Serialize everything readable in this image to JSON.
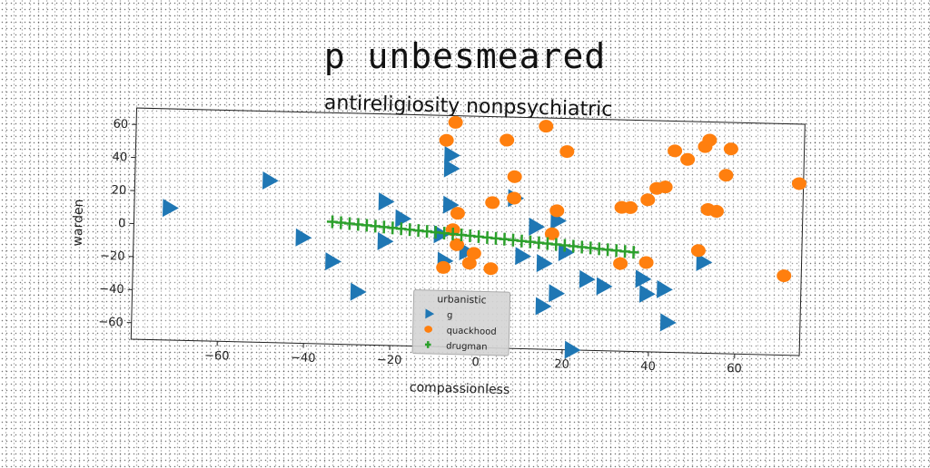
{
  "page_title": "p unbesmeared",
  "chart_data": {
    "type": "scatter",
    "title": "antireligiosity nonpsychiatric",
    "xlabel": "compassionless",
    "ylabel": "warden",
    "xlim": [
      -80,
      75
    ],
    "ylim": [
      -70,
      70
    ],
    "xticks": [
      -60,
      -40,
      -20,
      0,
      20,
      40,
      60
    ],
    "yticks": [
      -60,
      -40,
      -20,
      0,
      20,
      40,
      60
    ],
    "grid": false,
    "legend": {
      "title": "urbanistic",
      "placement": "lower-center"
    },
    "series": [
      {
        "name": "g",
        "marker": "triangle-right",
        "color": "#1f77b4",
        "points": [
          [
            -72,
            10
          ],
          [
            -49,
            28
          ],
          [
            -41,
            -6
          ],
          [
            -34,
            -20
          ],
          [
            -28,
            -38
          ],
          [
            -22,
            17
          ],
          [
            -22,
            -7
          ],
          [
            -18,
            7
          ],
          [
            -7,
            46
          ],
          [
            -7,
            38
          ],
          [
            -7,
            16
          ],
          [
            -8,
            -18
          ],
          [
            -3,
            -12
          ],
          [
            -9,
            -2
          ],
          [
            8,
            21
          ],
          [
            13,
            4
          ],
          [
            15,
            -18
          ],
          [
            18,
            8
          ],
          [
            10,
            -14
          ],
          [
            20,
            -11
          ],
          [
            18,
            -36
          ],
          [
            15,
            -44
          ],
          [
            25,
            -27
          ],
          [
            29,
            -31
          ],
          [
            38,
            -26
          ],
          [
            39,
            -35
          ],
          [
            43,
            -32
          ],
          [
            44,
            -52
          ],
          [
            52,
            -15
          ],
          [
            22,
            -70
          ]
        ]
      },
      {
        "name": "quackhood",
        "marker": "circle",
        "color": "#ff7f0e",
        "points": [
          [
            -8,
            55
          ],
          [
            -6,
            66
          ],
          [
            6,
            56
          ],
          [
            15,
            65
          ],
          [
            20,
            50
          ],
          [
            8,
            34
          ],
          [
            -5,
            11
          ],
          [
            3,
            18
          ],
          [
            8,
            21
          ],
          [
            18,
            14
          ],
          [
            17,
            0
          ],
          [
            -6,
            1
          ],
          [
            -5,
            -8
          ],
          [
            -1,
            -13
          ],
          [
            -8,
            -22
          ],
          [
            -2,
            -19
          ],
          [
            3,
            -22
          ],
          [
            33,
            -17
          ],
          [
            39,
            -16
          ],
          [
            33,
            17
          ],
          [
            35,
            17
          ],
          [
            39,
            22
          ],
          [
            43,
            30
          ],
          [
            41,
            29
          ],
          [
            45,
            52
          ],
          [
            48,
            47
          ],
          [
            52,
            55
          ],
          [
            53,
            59
          ],
          [
            58,
            54
          ],
          [
            57,
            38
          ],
          [
            53,
            17
          ],
          [
            55,
            16
          ],
          [
            51,
            -8
          ],
          [
            71,
            -22
          ],
          [
            74,
            34
          ]
        ]
      },
      {
        "name": "drugman",
        "marker": "plus",
        "color": "#2ca02c",
        "points": [
          [
            -34,
            4
          ],
          [
            -32,
            3.6
          ],
          [
            -30,
            3.2
          ],
          [
            -28,
            2.8
          ],
          [
            -26,
            2.4
          ],
          [
            -24,
            2
          ],
          [
            -22,
            1.6
          ],
          [
            -20,
            1.2
          ],
          [
            -18,
            0.8
          ],
          [
            -16,
            0.4
          ],
          [
            -14,
            0
          ],
          [
            -12,
            -0.4
          ],
          [
            -10,
            -0.8
          ],
          [
            -8,
            -1.2
          ],
          [
            -6,
            -1.6
          ],
          [
            -4,
            -2
          ],
          [
            -2,
            -2.4
          ],
          [
            0,
            -2.8
          ],
          [
            2,
            -3.2
          ],
          [
            4,
            -3.6
          ],
          [
            6,
            -4
          ],
          [
            8,
            -4.4
          ],
          [
            10,
            -4.8
          ],
          [
            12,
            -5.2
          ],
          [
            14,
            -5.6
          ],
          [
            16,
            -6
          ],
          [
            18,
            -6.4
          ],
          [
            20,
            -6.8
          ],
          [
            22,
            -7.2
          ],
          [
            24,
            -7.6
          ],
          [
            26,
            -8
          ],
          [
            28,
            -8.4
          ],
          [
            30,
            -8.8
          ],
          [
            32,
            -9.2
          ],
          [
            34,
            -9.6
          ],
          [
            36,
            -10
          ]
        ]
      }
    ]
  }
}
